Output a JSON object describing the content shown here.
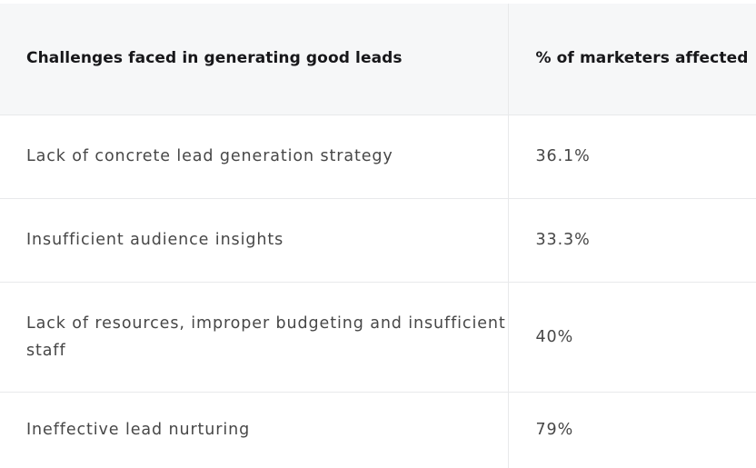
{
  "table": {
    "headers": [
      "Challenges faced in generating good leads",
      "% of marketers affected"
    ],
    "rows": [
      {
        "challenge": "Lack of concrete lead generation strategy",
        "percent": "36.1%"
      },
      {
        "challenge": "Insufficient audience insights",
        "percent": "33.3%"
      },
      {
        "challenge": "Lack of resources, improper budgeting and insufficient staff",
        "percent": "40%"
      },
      {
        "challenge": "Ineffective lead nurturing",
        "percent": "79%"
      }
    ]
  },
  "colors": {
    "header_bg": "#f6f7f8",
    "border": "#e8e9eb",
    "header_text": "#17171a",
    "body_text": "#474747"
  }
}
